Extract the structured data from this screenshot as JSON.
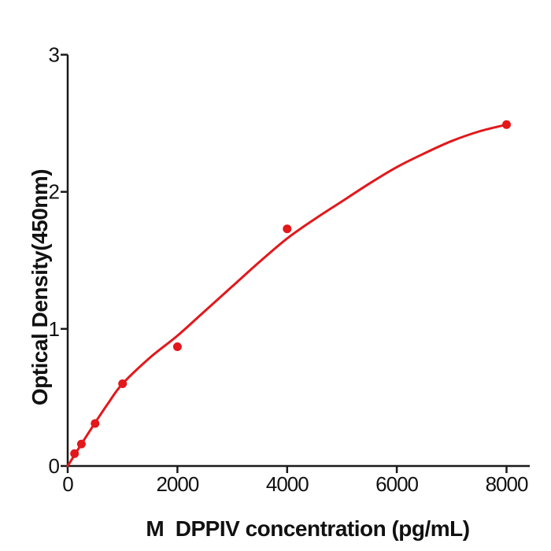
{
  "chart_data": {
    "type": "scatter",
    "title": "",
    "xlabel": "M  DPPIV concentration (pg/mL)",
    "ylabel": "Optical Density(450nm)",
    "xlim": [
      0,
      8420
    ],
    "ylim": [
      0,
      3
    ],
    "x_ticks": [
      0,
      2000,
      4000,
      6000,
      8000
    ],
    "y_ticks": [
      0,
      1,
      2,
      3
    ],
    "grid": false,
    "legend": null,
    "marker": "circle",
    "marker_radius": 5.5,
    "colors": {
      "series": "#e2181b",
      "axis": "#1a1a1a",
      "text": "#111111",
      "background": "#ffffff"
    },
    "points": [
      {
        "x": 125,
        "y": 0.09
      },
      {
        "x": 250,
        "y": 0.16
      },
      {
        "x": 500,
        "y": 0.31
      },
      {
        "x": 1000,
        "y": 0.6
      },
      {
        "x": 2000,
        "y": 0.87
      },
      {
        "x": 4000,
        "y": 1.73
      },
      {
        "x": 8000,
        "y": 2.49
      }
    ],
    "fit_curve": [
      [
        0,
        0
      ],
      [
        125,
        0.08
      ],
      [
        250,
        0.16
      ],
      [
        500,
        0.315
      ],
      [
        750,
        0.465
      ],
      [
        1000,
        0.6
      ],
      [
        1500,
        0.79
      ],
      [
        2000,
        0.95
      ],
      [
        2500,
        1.13
      ],
      [
        3000,
        1.31
      ],
      [
        3500,
        1.49
      ],
      [
        4000,
        1.66
      ],
      [
        4500,
        1.8
      ],
      [
        5000,
        1.93
      ],
      [
        5500,
        2.06
      ],
      [
        6000,
        2.18
      ],
      [
        6500,
        2.28
      ],
      [
        7000,
        2.37
      ],
      [
        7500,
        2.44
      ],
      [
        8000,
        2.49
      ]
    ]
  }
}
